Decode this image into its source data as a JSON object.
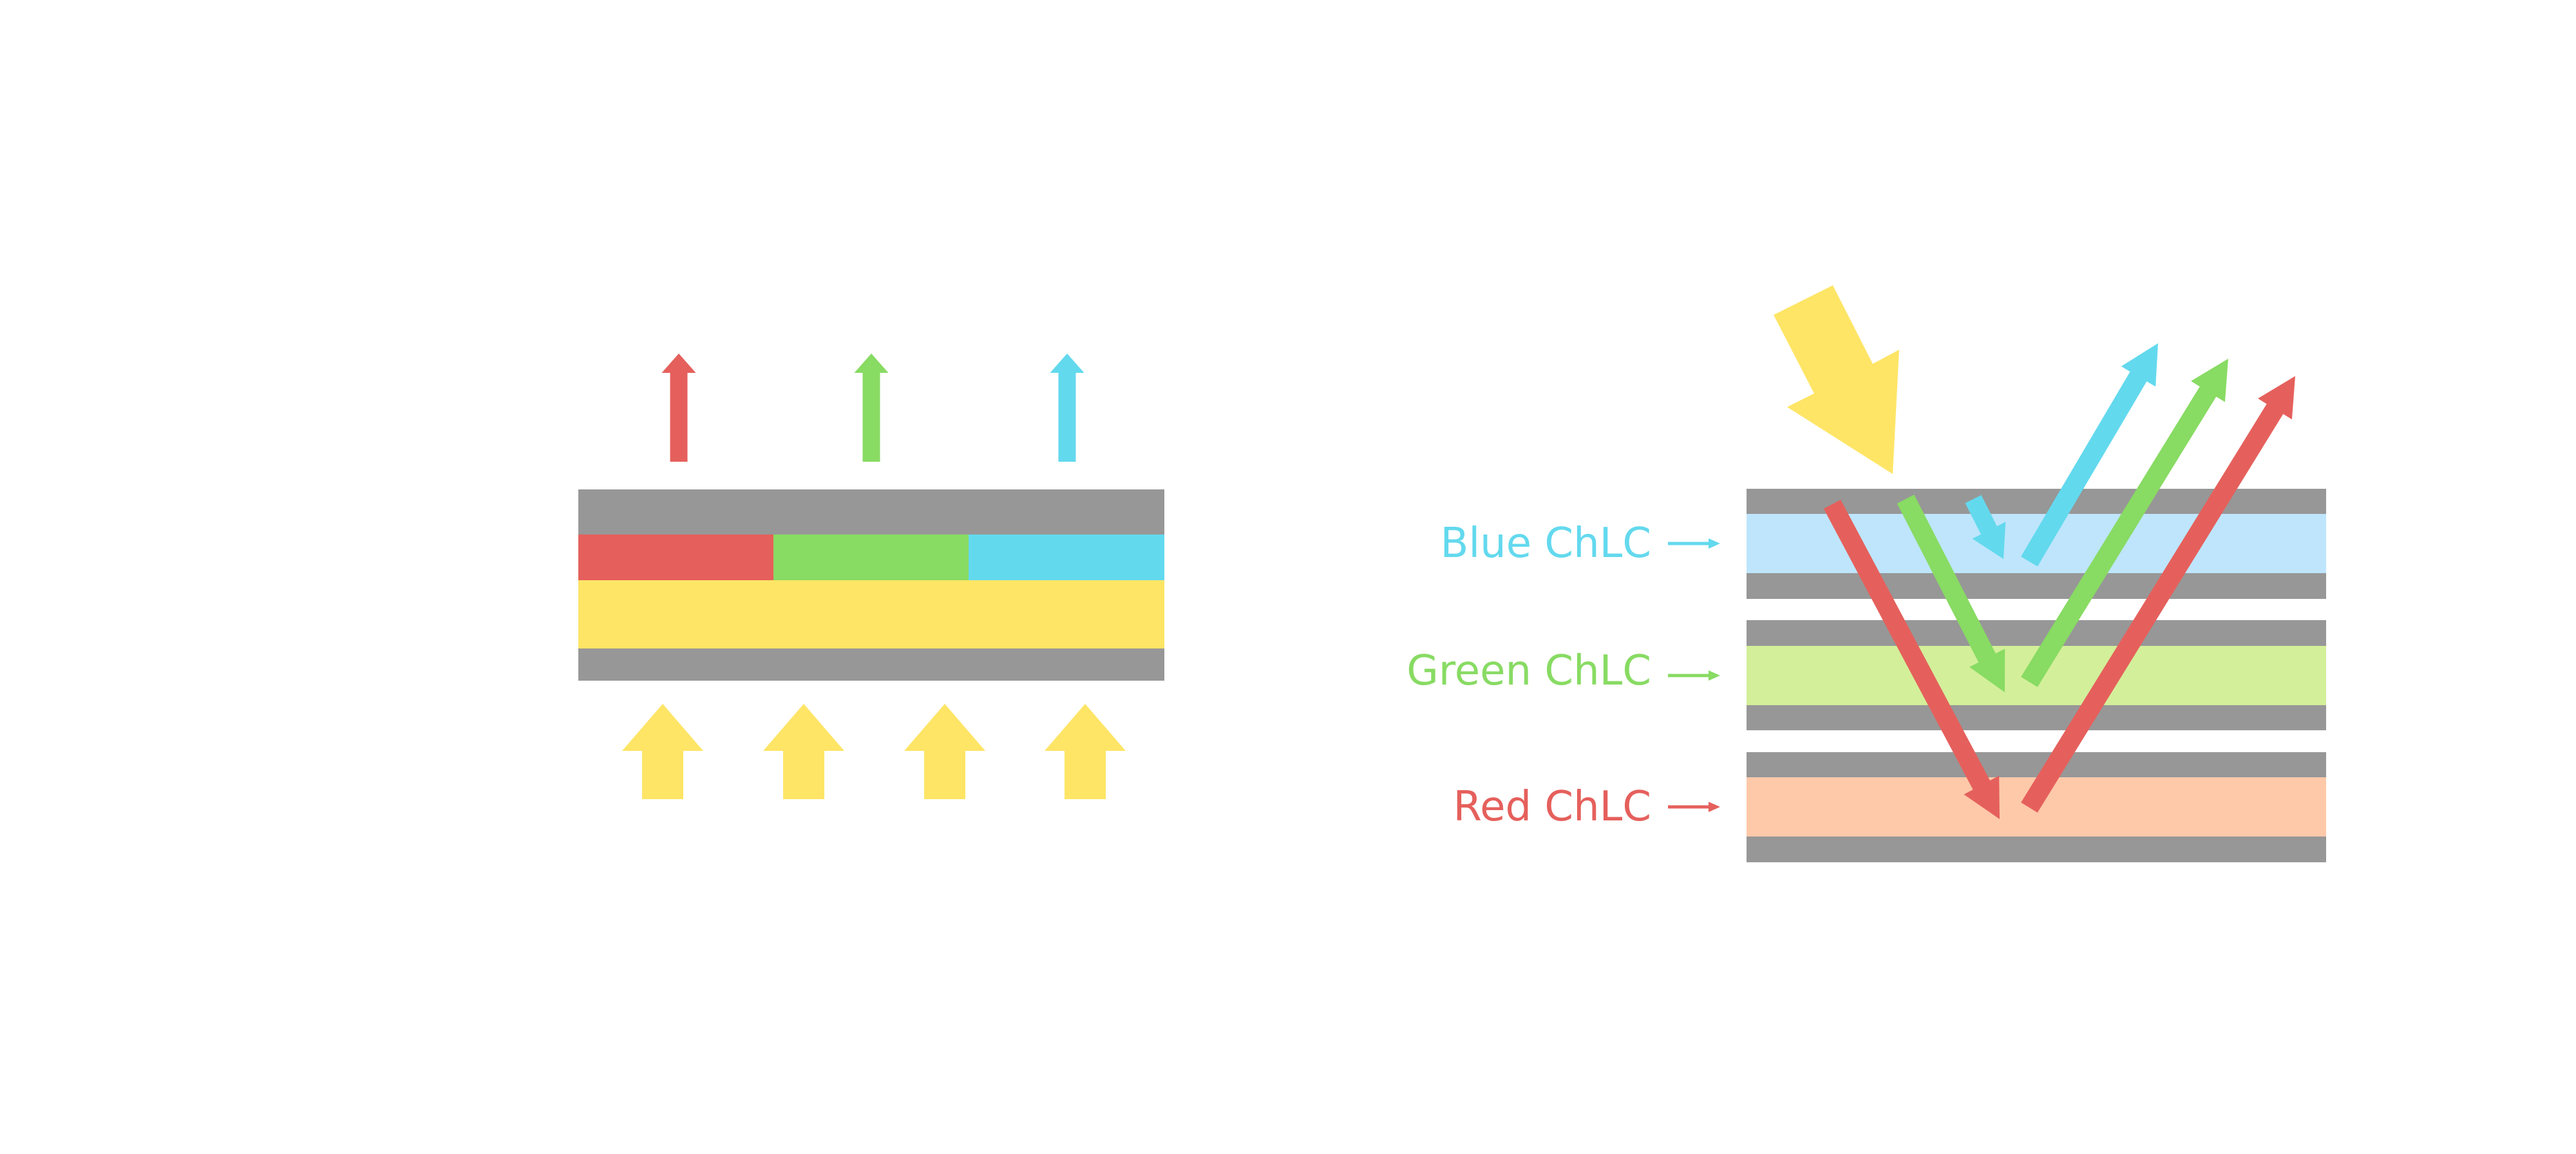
{
  "colors": {
    "gray": "#979797",
    "red": "#e5605c",
    "green": "#88db63",
    "blue": "#63d9ee",
    "yellow": "#fee566",
    "light_blue": "#bee5fc",
    "light_green": "#d3ef9a",
    "peach": "#fdc9a9"
  },
  "left_diagram": {
    "emitted_arrows": [
      "red",
      "green",
      "blue"
    ],
    "color_filter_segments": [
      "red",
      "green",
      "blue"
    ],
    "backlight_arrow_count": 4
  },
  "right_diagram": {
    "layers": [
      {
        "label": "Blue ChLC",
        "color_key": "blue",
        "fill_key": "light_blue"
      },
      {
        "label": "Green ChLC",
        "color_key": "green",
        "fill_key": "light_green"
      },
      {
        "label": "Red ChLC",
        "color_key": "red",
        "fill_key": "peach"
      }
    ]
  }
}
